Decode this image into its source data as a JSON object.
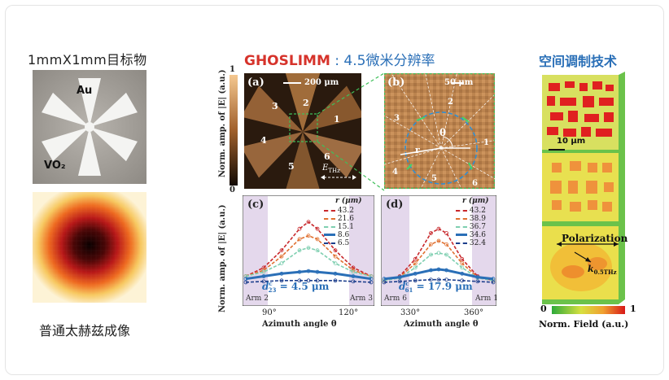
{
  "header": {
    "left_title": "1mmX1mm目标物",
    "mid_title_brand": "GHOSLIMM",
    "mid_title_rest": " : 4.5微米分辨率",
    "right_title": "空间调制技术"
  },
  "left": {
    "label_au": "Au",
    "label_vo2": "VO₂",
    "caption": "普通太赫兹成像"
  },
  "panel_a": {
    "label": "(a)",
    "scale": "200 μm",
    "sectors": [
      "1",
      "2",
      "3",
      "4",
      "5",
      "6"
    ],
    "field": "E",
    "field_sub": "THz",
    "colorbar_max": "1",
    "colorbar_min": "0",
    "ylabel": "Norm. amp. of |E| (a.u.)"
  },
  "panel_b": {
    "label": "(b)",
    "scale": "50 μm",
    "sectors": [
      "1",
      "2",
      "3",
      "4",
      "5",
      "6"
    ],
    "theta": "θ",
    "r": "r"
  },
  "panel_c": {
    "label": "(c)",
    "legend_title": "r (μm)",
    "legend": [
      "43.2",
      "21.6",
      "15.1",
      "8.6",
      "6.5"
    ],
    "colors": [
      "#c8282c",
      "#e07030",
      "#e0c040",
      "#7ecfb0",
      "#2a6fb7",
      "#1c3e8c"
    ],
    "annotation": "d",
    "annotation_sup": "c",
    "annotation_sub": "23",
    "annotation_val": " = 4.5 μm",
    "arm_left": "Arm 2",
    "arm_right": "Arm 3",
    "xticks": [
      "90°",
      "120°"
    ],
    "xlabel": "Azimuth angle θ"
  },
  "panel_d": {
    "label": "(d)",
    "legend_title": "r (μm)",
    "legend": [
      "43.2",
      "38.9",
      "36.7",
      "34.6",
      "32.4"
    ],
    "annotation": "d",
    "annotation_sup": "c",
    "annotation_sub": "61",
    "annotation_val": " = 17.9 μm",
    "arm_left": "Arm 6",
    "arm_right": "Arm 1",
    "xticks": [
      "330°",
      "360°"
    ],
    "xlabel": "Azimuth angle θ"
  },
  "right": {
    "scale": "10 μm",
    "polarization": "Polarization",
    "k_label": "k",
    "k_sub": "0.5THz",
    "cb_min": "0",
    "cb_max": "1",
    "cb_label": "Norm. Field (a.u.)"
  },
  "chart_data": [
    {
      "type": "line",
      "panel": "(c)",
      "x": [
        70,
        80,
        90,
        100,
        105,
        110,
        120,
        130,
        140
      ],
      "series": [
        {
          "name": "43.2",
          "values": [
            0.25,
            0.35,
            0.55,
            0.8,
            0.88,
            0.8,
            0.55,
            0.35,
            0.25
          ]
        },
        {
          "name": "21.6",
          "values": [
            0.25,
            0.32,
            0.48,
            0.68,
            0.72,
            0.68,
            0.48,
            0.32,
            0.25
          ]
        },
        {
          "name": "15.1",
          "values": [
            0.25,
            0.3,
            0.4,
            0.55,
            0.58,
            0.55,
            0.4,
            0.3,
            0.25
          ]
        },
        {
          "name": "8.6",
          "values": [
            0.22,
            0.25,
            0.28,
            0.3,
            0.31,
            0.3,
            0.28,
            0.25,
            0.22
          ]
        },
        {
          "name": "6.5",
          "values": [
            0.18,
            0.19,
            0.2,
            0.2,
            0.2,
            0.2,
            0.2,
            0.19,
            0.18
          ]
        }
      ],
      "xlabel": "Azimuth angle θ",
      "ylabel": "Norm. amp. of |E| (a.u.)"
    },
    {
      "type": "line",
      "panel": "(d)",
      "x": [
        310,
        320,
        330,
        340,
        345,
        350,
        360,
        370,
        380
      ],
      "series": [
        {
          "name": "43.2",
          "values": [
            0.2,
            0.25,
            0.45,
            0.75,
            0.8,
            0.75,
            0.45,
            0.25,
            0.2
          ]
        },
        {
          "name": "38.9",
          "values": [
            0.2,
            0.24,
            0.4,
            0.62,
            0.66,
            0.62,
            0.4,
            0.24,
            0.2
          ]
        },
        {
          "name": "36.7",
          "values": [
            0.2,
            0.23,
            0.35,
            0.5,
            0.52,
            0.5,
            0.35,
            0.23,
            0.2
          ]
        },
        {
          "name": "34.6",
          "values": [
            0.22,
            0.24,
            0.28,
            0.32,
            0.33,
            0.32,
            0.28,
            0.24,
            0.22
          ]
        },
        {
          "name": "32.4",
          "values": [
            0.18,
            0.19,
            0.2,
            0.21,
            0.21,
            0.21,
            0.2,
            0.19,
            0.18
          ]
        }
      ],
      "xlabel": "Azimuth angle θ"
    }
  ]
}
